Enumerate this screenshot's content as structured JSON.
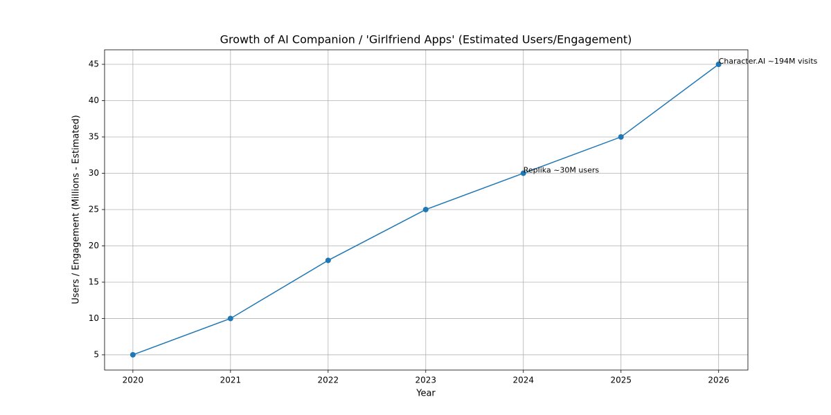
{
  "chart_data": {
    "type": "line",
    "title": "Growth of AI Companion / 'Girlfriend Apps' (Estimated Users/Engagement)",
    "x_label": "Year",
    "y_label": "Users / Engagement (Millions - Estimated)",
    "x": [
      2020,
      2021,
      2022,
      2023,
      2024,
      2025,
      2026
    ],
    "series": [
      {
        "color": "#1f77b4",
        "values": [
          5,
          10,
          18,
          25,
          30,
          35,
          45
        ]
      }
    ],
    "xlim": [
      2019.71,
      2026.3
    ],
    "xticks": [
      2020,
      2021,
      2022,
      2023,
      2024,
      2025,
      2026
    ],
    "ylim": [
      2.9,
      47
    ],
    "yticks": [
      5,
      10,
      15,
      20,
      25,
      30,
      35,
      40,
      45
    ],
    "grid": true,
    "annotations": [
      {
        "text": "Replika ~30M users",
        "x": 2024,
        "y": 30
      },
      {
        "text": "Character.AI ~194M visits",
        "x": 2026,
        "y": 45
      }
    ]
  }
}
